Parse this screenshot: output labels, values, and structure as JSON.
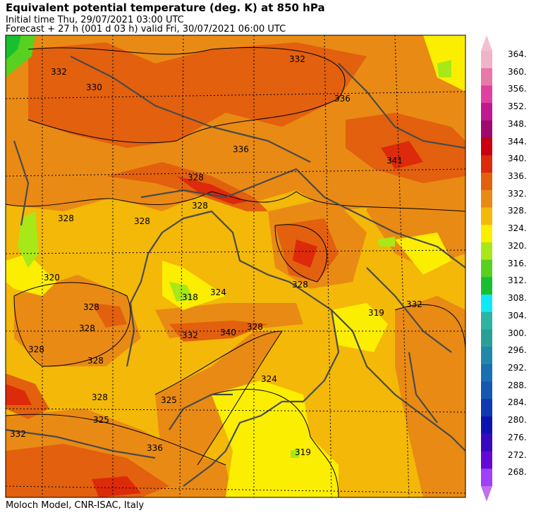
{
  "header": {
    "title": "Equivalent potential temperature (deg. K) at 850 hPa",
    "initial_time": "Initial time  Thu, 29/07/2021  03:00 UTC",
    "forecast": "Forecast  +  27 h  (001 d 03 h)  valid Fri, 30/07/2021 06:00 UTC"
  },
  "footer": "Moloch Model, CNR-ISAC, Italy",
  "legend": {
    "levels": [
      {
        "value": 364,
        "label": "364.",
        "color": "#f0b4c8"
      },
      {
        "value": 360,
        "label": "360.",
        "color": "#e878a8"
      },
      {
        "value": 356,
        "label": "356.",
        "color": "#e040a0"
      },
      {
        "value": 352,
        "label": "352.",
        "color": "#c01890"
      },
      {
        "value": 348,
        "label": "348.",
        "color": "#a00870"
      },
      {
        "value": 344,
        "label": "344.",
        "color": "#c80010"
      },
      {
        "value": 340,
        "label": "340.",
        "color": "#dc2a0a"
      },
      {
        "value": 336,
        "label": "336.",
        "color": "#e2600e"
      },
      {
        "value": 332,
        "label": "332.",
        "color": "#e98a14"
      },
      {
        "value": 328,
        "label": "328.",
        "color": "#f3b808"
      },
      {
        "value": 324,
        "label": "324.",
        "color": "#fcee00"
      },
      {
        "value": 320,
        "label": "320.",
        "color": "#a8e818"
      },
      {
        "value": 316,
        "label": "316.",
        "color": "#58d020"
      },
      {
        "value": 312,
        "label": "312.",
        "color": "#18c030"
      },
      {
        "value": 308,
        "label": "308.",
        "color": "#10e8f8"
      },
      {
        "value": 304,
        "label": "304.",
        "color": "#2cb4a0"
      },
      {
        "value": 300,
        "label": "300.",
        "color": "#28a098"
      },
      {
        "value": 296,
        "label": "296.",
        "color": "#2088a8"
      },
      {
        "value": 292,
        "label": "292.",
        "color": "#1870b0"
      },
      {
        "value": 288,
        "label": "288.",
        "color": "#1458b0"
      },
      {
        "value": 284,
        "label": "284.",
        "color": "#1038b0"
      },
      {
        "value": 280,
        "label": "280.",
        "color": "#0c14b0"
      },
      {
        "value": 276,
        "label": "276.",
        "color": "#3808c0"
      },
      {
        "value": 272,
        "label": "272.",
        "color": "#6408d8"
      },
      {
        "value": 268,
        "label": "268.",
        "color": "#a040f8"
      }
    ],
    "arrow_top_color": "#f4c0d0",
    "arrow_bottom_color": "#c070f0"
  },
  "contour_labels": [
    "332",
    "330",
    "332",
    "328",
    "336",
    "336",
    "341",
    "328",
    "328",
    "328",
    "320",
    "328",
    "318",
    "324",
    "328",
    "332",
    "340",
    "328",
    "319",
    "328",
    "328",
    "328",
    "324",
    "325",
    "325",
    "328",
    "332",
    "319",
    "332",
    "336"
  ]
}
